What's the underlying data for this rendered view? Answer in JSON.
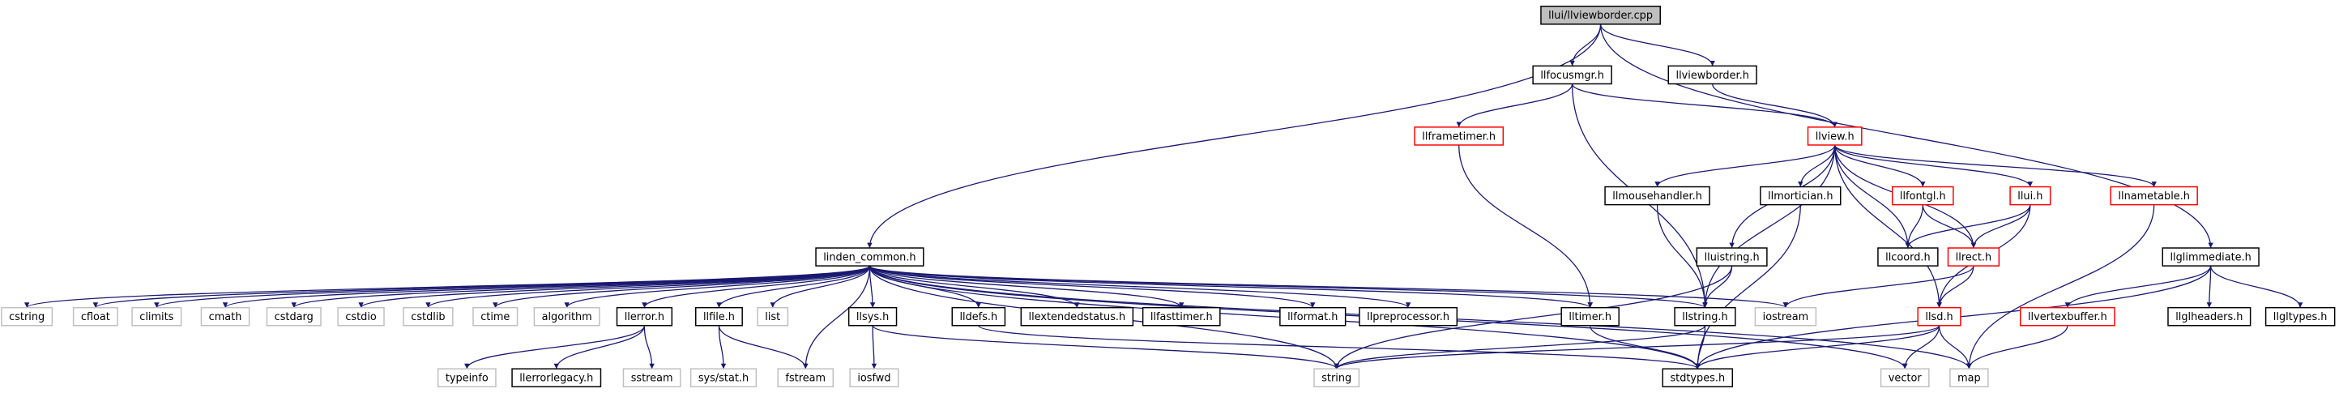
{
  "nodes": [
    {
      "label": "llui/llviewborder.cpp",
      "kind": "root"
    },
    {
      "label": "llfocusmgr.h",
      "kind": "project"
    },
    {
      "label": "llviewborder.h",
      "kind": "project"
    },
    {
      "label": "llframetimer.h",
      "kind": "truncated"
    },
    {
      "label": "llview.h",
      "kind": "truncated"
    },
    {
      "label": "llmousehandler.h",
      "kind": "project"
    },
    {
      "label": "llmortician.h",
      "kind": "project"
    },
    {
      "label": "llfontgl.h",
      "kind": "truncated"
    },
    {
      "label": "llui.h",
      "kind": "truncated"
    },
    {
      "label": "llnametable.h",
      "kind": "truncated"
    },
    {
      "label": "linden_common.h",
      "kind": "project"
    },
    {
      "label": "lluistring.h",
      "kind": "project"
    },
    {
      "label": "llcoord.h",
      "kind": "project"
    },
    {
      "label": "llrect.h",
      "kind": "truncated"
    },
    {
      "label": "llglimmediate.h",
      "kind": "project"
    },
    {
      "label": "cstring",
      "kind": "system"
    },
    {
      "label": "cfloat",
      "kind": "system"
    },
    {
      "label": "climits",
      "kind": "system"
    },
    {
      "label": "cmath",
      "kind": "system"
    },
    {
      "label": "cstdarg",
      "kind": "system"
    },
    {
      "label": "cstdio",
      "kind": "system"
    },
    {
      "label": "cstdlib",
      "kind": "system"
    },
    {
      "label": "ctime",
      "kind": "system"
    },
    {
      "label": "algorithm",
      "kind": "system"
    },
    {
      "label": "llerror.h",
      "kind": "project"
    },
    {
      "label": "llfile.h",
      "kind": "project"
    },
    {
      "label": "list",
      "kind": "system"
    },
    {
      "label": "llsys.h",
      "kind": "project"
    },
    {
      "label": "lldefs.h",
      "kind": "project"
    },
    {
      "label": "llextendedstatus.h",
      "kind": "project"
    },
    {
      "label": "llfasttimer.h",
      "kind": "project"
    },
    {
      "label": "llformat.h",
      "kind": "project"
    },
    {
      "label": "llpreprocessor.h",
      "kind": "project"
    },
    {
      "label": "lltimer.h",
      "kind": "project"
    },
    {
      "label": "llstring.h",
      "kind": "project"
    },
    {
      "label": "iostream",
      "kind": "system"
    },
    {
      "label": "llsd.h",
      "kind": "truncated"
    },
    {
      "label": "llvertexbuffer.h",
      "kind": "truncated"
    },
    {
      "label": "llglheaders.h",
      "kind": "project"
    },
    {
      "label": "llgltypes.h",
      "kind": "project"
    },
    {
      "label": "typeinfo",
      "kind": "system"
    },
    {
      "label": "llerrorlegacy.h",
      "kind": "project"
    },
    {
      "label": "sstream",
      "kind": "system"
    },
    {
      "label": "sys/stat.h",
      "kind": "system"
    },
    {
      "label": "fstream",
      "kind": "system"
    },
    {
      "label": "iosfwd",
      "kind": "system"
    },
    {
      "label": "string",
      "kind": "system"
    },
    {
      "label": "stdtypes.h",
      "kind": "project"
    },
    {
      "label": "vector",
      "kind": "system"
    },
    {
      "label": "map",
      "kind": "system"
    }
  ]
}
